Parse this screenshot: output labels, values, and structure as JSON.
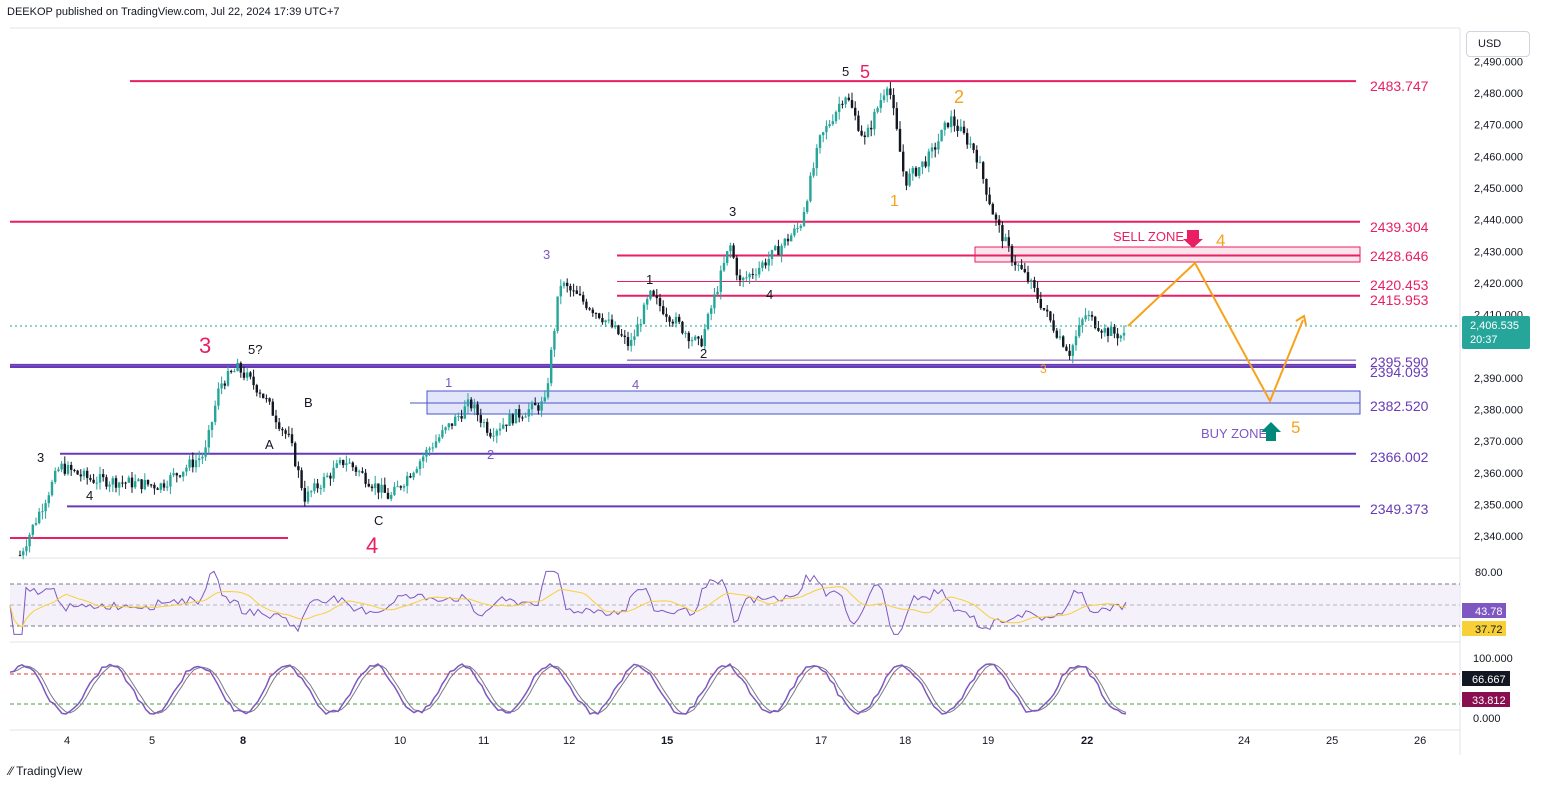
{
  "header": {
    "published": "DEEKOP published on TradingView.com, Jul 22, 2024 17:39 UTC+7"
  },
  "price_scale": {
    "currency": "USD"
  },
  "branding": {
    "name": "TradingView"
  },
  "colors": {
    "pink": "#e91e63",
    "purple": "#673ab7",
    "orange": "#f7a21b",
    "up": "#26a69a",
    "down": "#131722",
    "rsi": "#7e57c2",
    "rsi_ma": "#f7d038",
    "stoch_k": "#7e57c2"
  },
  "chart_data": [
    {
      "type": "candlestick",
      "title": "",
      "y_ticks": [
        "2,490.000",
        "2,480.000",
        "2,470.000",
        "2,460.000",
        "2,450.000",
        "2,440.000",
        "2,430.000",
        "2,420.000",
        "2,410.000",
        "2,390.000",
        "2,380.000",
        "2,370.000",
        "2,360.000",
        "2,350.000",
        "2,340.000"
      ],
      "ylim": [
        2330,
        2492
      ],
      "x_ticks": [
        "4",
        "5",
        "8",
        "10",
        "11",
        "12",
        "15",
        "17",
        "18",
        "19",
        "22",
        "24",
        "25",
        "26"
      ],
      "current_price": {
        "value": "2,406.535",
        "countdown": "20:37"
      },
      "levels": [
        {
          "value": 2483.747,
          "label": "2483.747",
          "color": "pink"
        },
        {
          "value": 2439.304,
          "label": "2439.304",
          "color": "pink"
        },
        {
          "value": 2428.646,
          "label": "2428.646",
          "color": "pink"
        },
        {
          "value": 2420.453,
          "label": "2420.453",
          "color": "pink"
        },
        {
          "value": 2415.953,
          "label": "2415.953",
          "color": "pink"
        },
        {
          "value": 2395.59,
          "label": "2395.590",
          "color": "purple"
        },
        {
          "value": 2394.093,
          "label": "2394.093",
          "color": "purple"
        },
        {
          "value": 2382.52,
          "label": "2382.520",
          "color": "purple"
        },
        {
          "value": 2366.002,
          "label": "2366.002",
          "color": "purple"
        },
        {
          "value": 2349.373,
          "label": "2349.373",
          "color": "purple"
        }
      ],
      "zones": [
        {
          "name": "SELL ZONE",
          "low": 2427,
          "high": 2431
        },
        {
          "name": "BUY ZONE",
          "low": 2378,
          "high": 2385
        }
      ],
      "annotations": {
        "sell_zone": "SELL ZONE",
        "buy_zone": "BUY ZONE",
        "wave_labels": [
          "3",
          "5?",
          "A",
          "B",
          "C",
          "4",
          "3",
          "4",
          "1",
          "2",
          "3",
          "1",
          "2",
          "3",
          "4",
          "4",
          "5",
          "5",
          "1",
          "2",
          "3",
          "4",
          "5"
        ]
      },
      "projection": [
        {
          "date_index": 57.5,
          "price": 2407
        },
        {
          "date_index": 60.5,
          "price": 2426
        },
        {
          "date_index": 63.5,
          "price": 2382
        },
        {
          "date_index": 65.2,
          "price": 2410
        }
      ]
    },
    {
      "type": "line",
      "name": "RSI",
      "ylim": [
        0,
        100
      ],
      "tick": "80.00",
      "bands": [
        30,
        50,
        70
      ],
      "series": [
        {
          "name": "RSI",
          "current": "43.78"
        },
        {
          "name": "RSI MA",
          "current": "37.72"
        }
      ]
    },
    {
      "type": "line",
      "name": "Stochastic",
      "ylim": [
        0,
        100
      ],
      "ticks": [
        "100.000",
        "0.000"
      ],
      "bands": [
        80,
        20
      ],
      "series": [
        {
          "name": "K",
          "current": "66.667"
        },
        {
          "name": "D",
          "current": "33.812"
        }
      ]
    }
  ]
}
